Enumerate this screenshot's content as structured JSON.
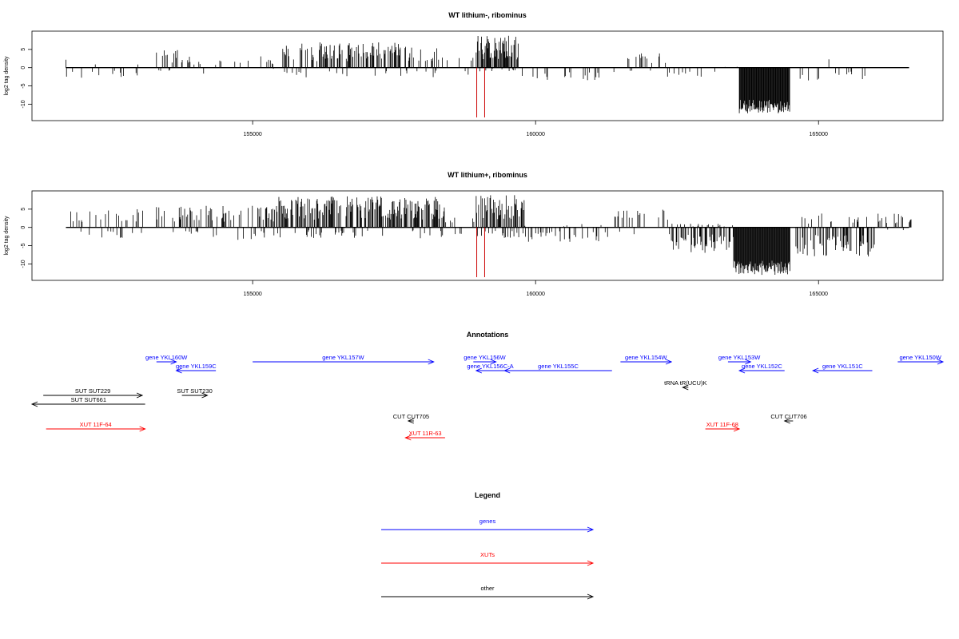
{
  "chart_data": [
    {
      "type": "bar",
      "title": "WT lithium-, ribominus",
      "ylabel": "log2 tag density",
      "xlabel": "",
      "xlim": [
        151100,
        167200
      ],
      "ylim": [
        -14.5,
        10
      ],
      "x_ticks": [
        "155000",
        "160000",
        "165000"
      ],
      "y_ticks": [
        "5",
        "0",
        "-5",
        "-10"
      ],
      "x_tick_values": [
        155000,
        160000,
        165000
      ],
      "y_tick_values": [
        5,
        0,
        -5,
        -10
      ],
      "grid": false,
      "baseline": [
        151700,
        166600
      ],
      "marker_positions": [
        158960,
        159100
      ],
      "marker_color": "#cc0000",
      "regions": [
        {
          "start": 151700,
          "end": 153100,
          "up": 2.5,
          "down": -3,
          "density": 0.012
        },
        {
          "start": 153300,
          "end": 153900,
          "up": 5,
          "down": -1,
          "density": 0.06
        },
        {
          "start": 153900,
          "end": 154800,
          "up": 2,
          "down": -2,
          "density": 0.01
        },
        {
          "start": 154900,
          "end": 155500,
          "up": 3.5,
          "down": -1,
          "density": 0.02
        },
        {
          "start": 155500,
          "end": 158300,
          "up": 7,
          "down": -3,
          "density": 0.12
        },
        {
          "start": 158300,
          "end": 158900,
          "up": 3,
          "down": -2,
          "density": 0.02
        },
        {
          "start": 158950,
          "end": 159700,
          "up": 9,
          "down": -1,
          "density": 0.2
        },
        {
          "start": 159700,
          "end": 161400,
          "up": 0.5,
          "down": -3.5,
          "density": 0.015
        },
        {
          "start": 161500,
          "end": 162300,
          "up": 4,
          "down": -1,
          "density": 0.06
        },
        {
          "start": 162300,
          "end": 163600,
          "up": 0.5,
          "down": -2.5,
          "density": 0.01
        },
        {
          "start": 163600,
          "end": 164500,
          "up": 0.5,
          "down": -12.5,
          "density": 0.4
        },
        {
          "start": 164600,
          "end": 166000,
          "up": 3,
          "down": -3.5,
          "density": 0.015
        }
      ]
    },
    {
      "type": "bar",
      "title": "WT lithium+, ribominus",
      "ylabel": "log2 tag density",
      "xlabel": "",
      "xlim": [
        151100,
        167200
      ],
      "ylim": [
        -14.5,
        10
      ],
      "x_ticks": [
        "155000",
        "160000",
        "165000"
      ],
      "y_ticks": [
        "5",
        "0",
        "-5",
        "-10"
      ],
      "x_tick_values": [
        155000,
        160000,
        165000
      ],
      "y_tick_values": [
        5,
        0,
        -5,
        -10
      ],
      "grid": false,
      "baseline": [
        151700,
        166600
      ],
      "marker_positions": [
        158960,
        159100
      ],
      "marker_color": "#cc0000",
      "regions": [
        {
          "start": 151700,
          "end": 153100,
          "up": 5,
          "down": -3,
          "density": 0.05
        },
        {
          "start": 153300,
          "end": 155400,
          "up": 6,
          "down": -3.5,
          "density": 0.08
        },
        {
          "start": 155400,
          "end": 158400,
          "up": 8.5,
          "down": -3,
          "density": 0.15
        },
        {
          "start": 158400,
          "end": 158950,
          "up": 3.5,
          "down": -2,
          "density": 0.03
        },
        {
          "start": 158950,
          "end": 159800,
          "up": 9,
          "down": -3,
          "density": 0.18
        },
        {
          "start": 159800,
          "end": 161300,
          "up": 1,
          "down": -4,
          "density": 0.05
        },
        {
          "start": 161400,
          "end": 162400,
          "up": 5,
          "down": -3,
          "density": 0.06
        },
        {
          "start": 162400,
          "end": 163500,
          "up": 1,
          "down": -7,
          "density": 0.12
        },
        {
          "start": 163500,
          "end": 164500,
          "up": 0.5,
          "down": -13,
          "density": 0.4
        },
        {
          "start": 164600,
          "end": 166000,
          "up": 4,
          "down": -8,
          "density": 0.12
        },
        {
          "start": 166000,
          "end": 166650,
          "up": 4,
          "down": -2,
          "density": 0.04
        }
      ]
    }
  ],
  "annotations": {
    "title": "Annotations",
    "items": [
      {
        "label": "gene YKL160W",
        "color": "#0000ff",
        "start": 153300,
        "end": 153650,
        "strand": "+",
        "row": 0
      },
      {
        "label": "gene YKL159C",
        "color": "#0000ff",
        "start": 153650,
        "end": 154350,
        "strand": "-",
        "row": 1
      },
      {
        "label": "gene YKL157W",
        "color": "#0000ff",
        "start": 155000,
        "end": 158200,
        "strand": "+",
        "row": 0
      },
      {
        "label": "gene YKL156W",
        "color": "#0000ff",
        "start": 158900,
        "end": 159300,
        "strand": "+",
        "row": 0
      },
      {
        "label": "gene YKL156C-A",
        "color": "#0000ff",
        "start": 158950,
        "end": 159450,
        "strand": "-",
        "row": 1
      },
      {
        "label": "gene YKL155C",
        "color": "#0000ff",
        "start": 159450,
        "end": 161350,
        "strand": "-",
        "row": 1
      },
      {
        "label": "gene YKL154W",
        "color": "#0000ff",
        "start": 161500,
        "end": 162400,
        "strand": "+",
        "row": 0
      },
      {
        "label": "gene YKL153W",
        "color": "#0000ff",
        "start": 163400,
        "end": 163800,
        "strand": "+",
        "row": 0
      },
      {
        "label": "gene YKL152C",
        "color": "#0000ff",
        "start": 163600,
        "end": 164400,
        "strand": "-",
        "row": 1
      },
      {
        "label": "gene YKL151C",
        "color": "#0000ff",
        "start": 164900,
        "end": 165950,
        "strand": "-",
        "row": 1
      },
      {
        "label": "gene YKL150W",
        "color": "#0000ff",
        "start": 166400,
        "end": 167200,
        "strand": "+",
        "row": 0
      },
      {
        "label": "tRNA tR(UCU)K",
        "color": "#000000",
        "start": 162600,
        "end": 162700,
        "strand": "-",
        "row": 2
      },
      {
        "label": "SUT SUT229",
        "color": "#000000",
        "start": 151300,
        "end": 153050,
        "strand": "+",
        "row": 3
      },
      {
        "label": "SUT SUT661",
        "color": "#000000",
        "start": 151100,
        "end": 153100,
        "strand": "-",
        "row": 4
      },
      {
        "label": "SUT SUT230",
        "color": "#000000",
        "start": 153750,
        "end": 154200,
        "strand": "+",
        "row": 3
      },
      {
        "label": "CUT CUT705",
        "color": "#000000",
        "start": 157750,
        "end": 157850,
        "strand": "-",
        "row": 5
      },
      {
        "label": "CUT CUT706",
        "color": "#000000",
        "start": 164400,
        "end": 164550,
        "strand": "-",
        "row": 5
      },
      {
        "label": "XUT 11F-64",
        "color": "#ff0000",
        "start": 151350,
        "end": 153100,
        "strand": "+",
        "row": 6
      },
      {
        "label": "XUT 11R-63",
        "color": "#ff0000",
        "start": 157700,
        "end": 158400,
        "strand": "-",
        "row": 7
      },
      {
        "label": "XUT 11F-68",
        "color": "#ff0000",
        "start": 163000,
        "end": 163600,
        "strand": "+",
        "row": 6
      }
    ]
  },
  "legend": {
    "title": "Legend",
    "items": [
      {
        "label": "genes",
        "color": "#0000ff"
      },
      {
        "label": "XUTs",
        "color": "#ff0000"
      },
      {
        "label": "other",
        "color": "#000000"
      }
    ]
  }
}
